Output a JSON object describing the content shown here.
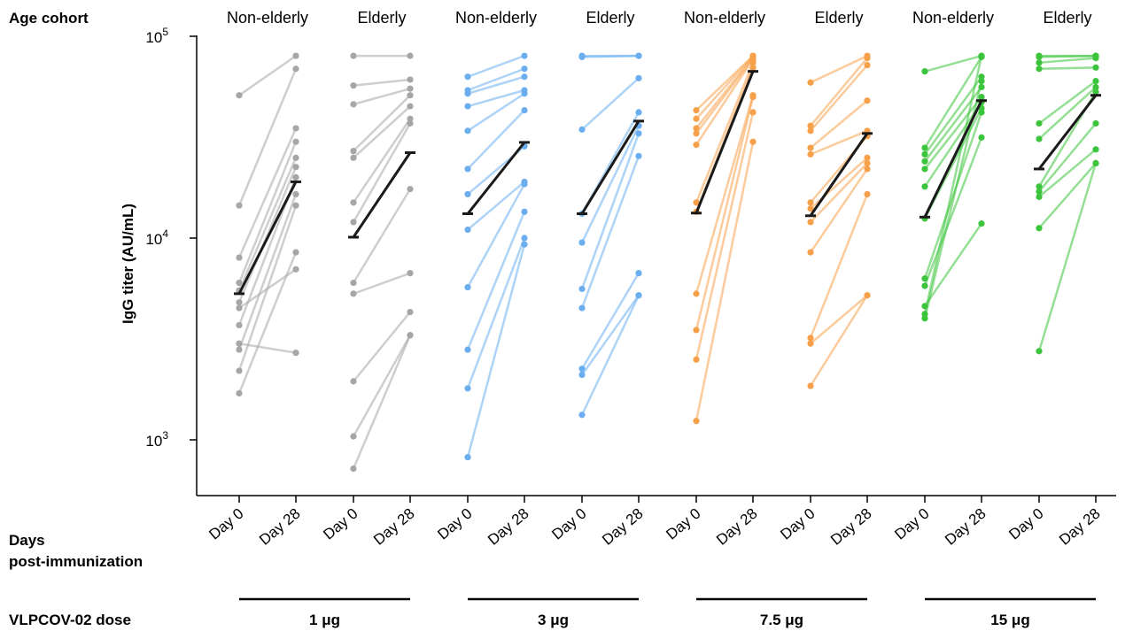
{
  "labels": {
    "age_cohort": "Age cohort",
    "days_line1": "Days",
    "days_line2": "post-immunization",
    "dose_label": "VLPCOV-02 dose",
    "ylabel": "IgG titer (AU/mL)"
  },
  "cohorts": [
    "Non-elderly",
    "Elderly",
    "Non-elderly",
    "Elderly",
    "Non-elderly",
    "Elderly",
    "Non-elderly",
    "Elderly"
  ],
  "x_ticks": [
    "Day 0",
    "Day 28"
  ],
  "y_ticks": [
    {
      "base": "10",
      "exp": "3",
      "value": 1000
    },
    {
      "base": "10",
      "exp": "4",
      "value": 10000
    },
    {
      "base": "10",
      "exp": "5",
      "value": 100000
    }
  ],
  "chart_data": {
    "type": "line",
    "ylabel": "IgG titer (AU/mL)",
    "yscale": "log",
    "ylim": [
      500,
      100000
    ],
    "x_categories": [
      "Day 0",
      "Day 28"
    ],
    "groups": [
      {
        "dose": "1 μg",
        "color": "#a6a6a6",
        "cohorts": [
          {
            "cohort": "Non-elderly",
            "pairs": [
              [
                51000,
                80000
              ],
              [
                14500,
                69000
              ],
              [
                8000,
                35000
              ],
              [
                6000,
                30000
              ],
              [
                5500,
                25000
              ],
              [
                4800,
                22500
              ],
              [
                3700,
                20000
              ],
              [
                2800,
                16500
              ],
              [
                2200,
                14500
              ],
              [
                1700,
                8500
              ],
              [
                4500,
                7000
              ],
              [
                3000,
                2700
              ]
            ],
            "geomean": [
              5300,
              19000
            ]
          },
          {
            "cohort": "Elderly",
            "pairs": [
              [
                80000,
                80000
              ],
              [
                57000,
                61000
              ],
              [
                46000,
                55000
              ],
              [
                27000,
                51000
              ],
              [
                25000,
                45000
              ],
              [
                15000,
                39000
              ],
              [
                12000,
                37000
              ],
              [
                6000,
                17500
              ],
              [
                5300,
                6700
              ],
              [
                1950,
                4300
              ],
              [
                1040,
                3300
              ],
              [
                720,
                3300
              ]
            ],
            "geomean": [
              10100,
              26500
            ]
          }
        ]
      },
      {
        "dose": "3 μg",
        "color": "#6aaef0",
        "cohorts": [
          {
            "cohort": "Non-elderly",
            "pairs": [
              [
                63000,
                80000
              ],
              [
                54000,
                69000
              ],
              [
                52000,
                63000
              ],
              [
                45000,
                54000
              ],
              [
                34000,
                52000
              ],
              [
                22000,
                43000
              ],
              [
                16500,
                28500
              ],
              [
                11000,
                19000
              ],
              [
                5700,
                18500
              ],
              [
                2800,
                13500
              ],
              [
                1800,
                10000
              ],
              [
                820,
                9300
              ]
            ],
            "geomean": [
              13200,
              29800
            ]
          },
          {
            "cohort": "Elderly",
            "pairs": [
              [
                80000,
                80000
              ],
              [
                79000,
                80000
              ],
              [
                34500,
                62000
              ],
              [
                13200,
                42000
              ],
              [
                9500,
                36000
              ],
              [
                5600,
                33000
              ],
              [
                4500,
                25500
              ],
              [
                2250,
                6700
              ],
              [
                2100,
                5200
              ],
              [
                1330,
                5200
              ]
            ],
            "geomean": [
              13200,
              38000
            ]
          }
        ]
      },
      {
        "dose": "7.5 μg",
        "color": "#f7a04a",
        "cohorts": [
          {
            "cohort": "Non-elderly",
            "pairs": [
              [
                43000,
                80000
              ],
              [
                39000,
                80000
              ],
              [
                35000,
                79000
              ],
              [
                33000,
                78000
              ],
              [
                29000,
                77000
              ],
              [
                15000,
                74000
              ],
              [
                13500,
                70000
              ],
              [
                5300,
                51000
              ],
              [
                3500,
                50000
              ],
              [
                2500,
                42000
              ],
              [
                1240,
                30000
              ]
            ],
            "geomean": [
              13300,
              67000
            ]
          },
          {
            "cohort": "Elderly",
            "pairs": [
              [
                59000,
                80000
              ],
              [
                36000,
                78000
              ],
              [
                34000,
                72000
              ],
              [
                28000,
                48000
              ],
              [
                26000,
                34000
              ],
              [
                15000,
                32000
              ],
              [
                14000,
                25000
              ],
              [
                12000,
                23500
              ],
              [
                8500,
                22000
              ],
              [
                3200,
                16500
              ],
              [
                3000,
                5200
              ],
              [
                1850,
                5200
              ]
            ],
            "geomean": [
              12900,
              33000
            ]
          }
        ]
      },
      {
        "dose": "15 μg",
        "color": "#3cc43c",
        "cohorts": [
          {
            "cohort": "Non-elderly",
            "pairs": [
              [
                67000,
                80000
              ],
              [
                28000,
                79000
              ],
              [
                26000,
                63000
              ],
              [
                24000,
                56000
              ],
              [
                22000,
                50000
              ],
              [
                18000,
                47000
              ],
              [
                12500,
                44000
              ],
              [
                6300,
                42000
              ],
              [
                5800,
                31500
              ],
              [
                4600,
                11800
              ],
              [
                4200,
                80000
              ],
              [
                4000,
                60000
              ]
            ],
            "geomean": [
              12700,
              48000
            ]
          },
          {
            "cohort": "Elderly",
            "pairs": [
              [
                80000,
                80000
              ],
              [
                79000,
                80000
              ],
              [
                74000,
                78000
              ],
              [
                69000,
                70000
              ],
              [
                37000,
                60000
              ],
              [
                31000,
                56000
              ],
              [
                18000,
                53000
              ],
              [
                17000,
                37000
              ],
              [
                16000,
                27500
              ],
              [
                11200,
                23500
              ],
              [
                2750,
                23500
              ]
            ],
            "geomean": [
              22000,
              51000
            ]
          }
        ]
      }
    ]
  }
}
